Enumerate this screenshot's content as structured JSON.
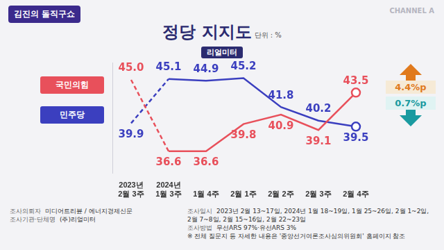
{
  "brand": "김진의 돌직구쇼",
  "channel": "CHANNEL A",
  "chart_data": {
    "type": "line",
    "title": "정당 지지도",
    "subtitle": "단위 : %",
    "source": "리얼미터",
    "categories": [
      "2023년 2월 3주",
      "2024년 1월 3주",
      "1월 4주",
      "2월 1주",
      "2월 2주",
      "2월 3주",
      "2월 4주"
    ],
    "series": [
      {
        "name": "국민의힘",
        "color": "#e8505b",
        "values": [
          45.0,
          36.6,
          36.6,
          39.8,
          40.9,
          39.1,
          43.5
        ],
        "value_labels": [
          "45.0",
          "36.6",
          "36.6",
          "39.8",
          "40.9",
          "39.1",
          "43.5"
        ]
      },
      {
        "name": "민주당",
        "color": "#3b3fbf",
        "values": [
          39.9,
          45.1,
          44.9,
          45.2,
          41.8,
          40.2,
          39.5
        ],
        "value_labels": [
          "39.9",
          "45.1",
          "44.9",
          "45.2",
          "41.8",
          "40.2",
          "39.5"
        ]
      }
    ],
    "ylim": [
      34,
      47
    ],
    "tick_labels": "x",
    "grid": false,
    "legend": "left",
    "data_labels": true,
    "annotations": [
      {
        "text": "4.4%p",
        "series": "국민의힘"
      },
      {
        "text": "0.7%p",
        "series": "민주당"
      }
    ]
  },
  "footer": [
    {
      "label": "조사의뢰자",
      "value": "미디어트리뷴 / 에너지경제신문"
    },
    {
      "label": "조사기관·단체명",
      "value": "(주)리얼미터"
    },
    {
      "label": "조사일시",
      "value": "2023년 2월 13~17일, 2024년 1월 18~19일, 1월 25~26일, 2월 1~2일, 2월 7~8일, 2월 15~16일, 2월 22~23일"
    },
    {
      "label": "조사방법",
      "value": "무선ARS 97%·유선ARS 3%"
    }
  ],
  "footnote": "※ 전체 질문지 등 자세한 내용은 '중앙선거여론조사심의위원회' 홈페이지 참조"
}
